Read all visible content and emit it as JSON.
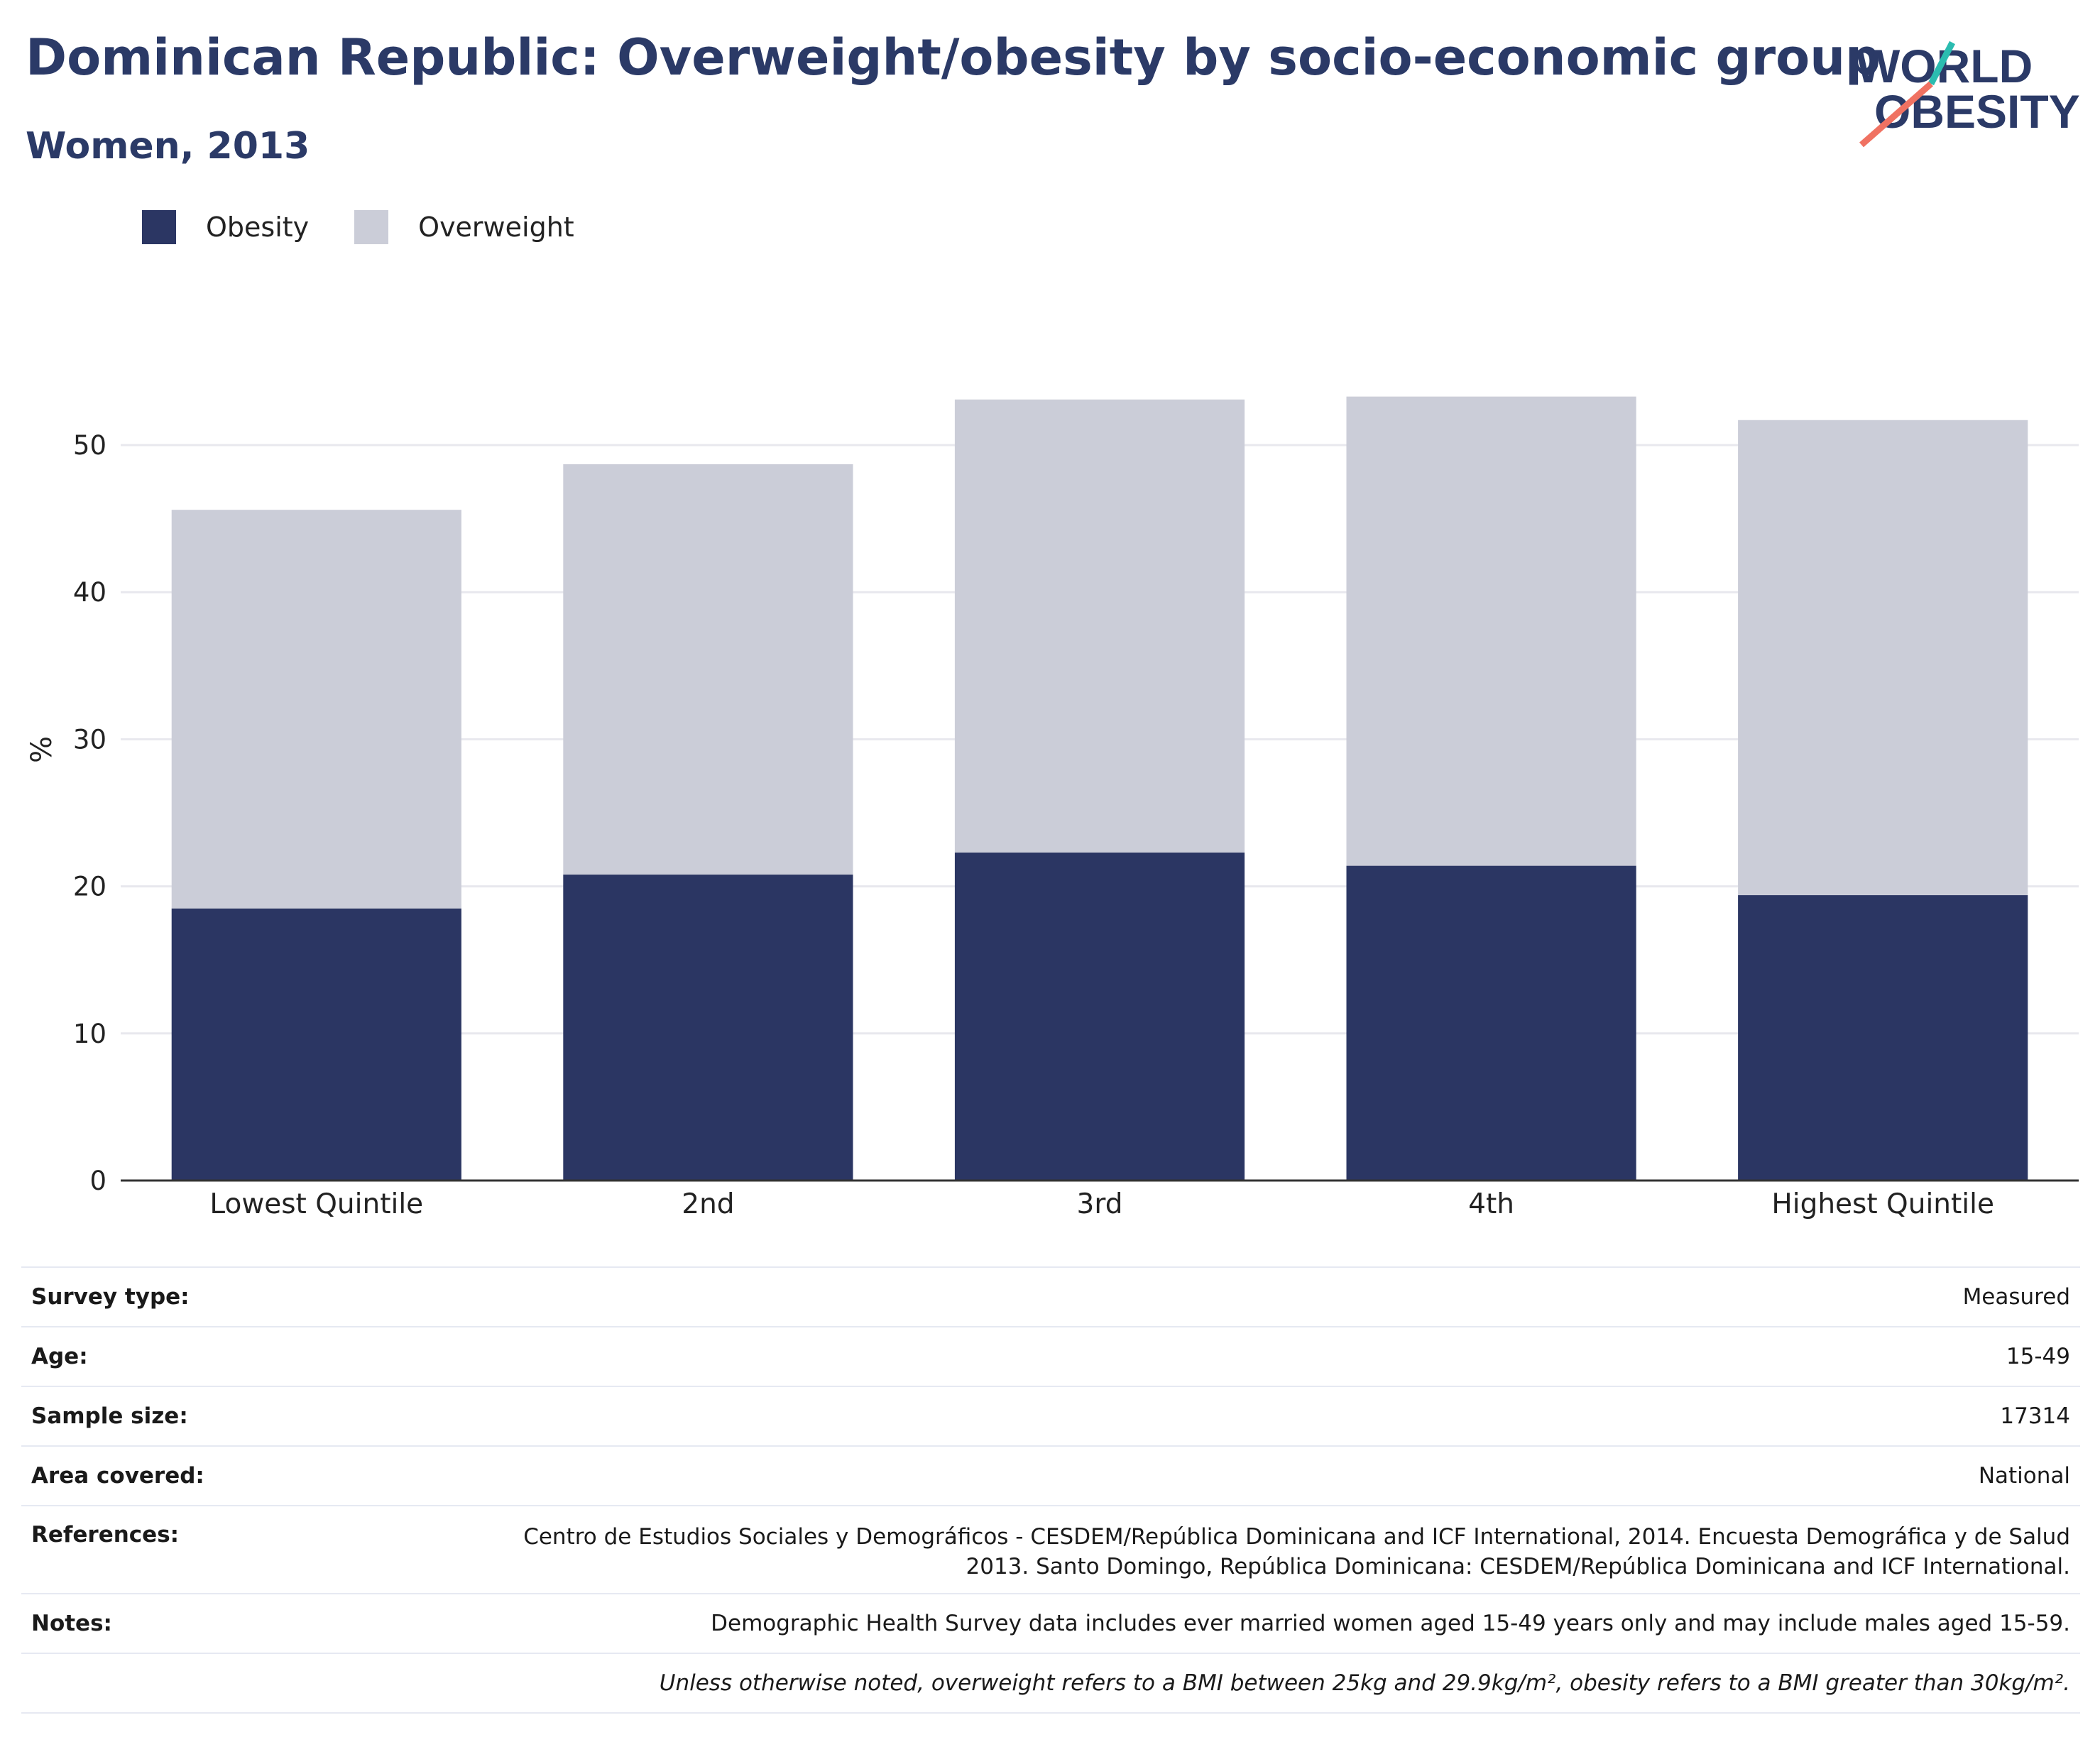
{
  "header": {
    "title": "Dominican Republic: Overweight/obesity by socio-economic group",
    "subtitle": "Women, 2013"
  },
  "logo": {
    "line1": "WORLD",
    "line2": "OBESITY"
  },
  "colors": {
    "obesity": "#2b3663",
    "overweight": "#cbcdd8",
    "title": "#2b3a67",
    "accent_teal": "#2bbcb0",
    "accent_coral": "#f07262"
  },
  "chart_data": {
    "type": "bar",
    "stacked": true,
    "categories": [
      "Lowest Quintile",
      "2nd",
      "3rd",
      "4th",
      "Highest Quintile"
    ],
    "series": [
      {
        "name": "Obesity",
        "values": [
          18.5,
          20.8,
          22.3,
          21.4,
          19.4
        ]
      },
      {
        "name": "Overweight",
        "values": [
          27.1,
          27.9,
          30.8,
          31.9,
          32.3
        ]
      }
    ],
    "ylabel": "%",
    "ylim": [
      0,
      55
    ],
    "yticks": [
      0,
      10,
      20,
      30,
      40,
      50
    ],
    "grid": true,
    "legend_position": "top-left"
  },
  "info": [
    {
      "key": "Survey type:",
      "value": "Measured"
    },
    {
      "key": "Age:",
      "value": "15-49"
    },
    {
      "key": "Sample size:",
      "value": "17314"
    },
    {
      "key": "Area covered:",
      "value": "National"
    },
    {
      "key": "References:",
      "value": "Centro de Estudios Sociales y Demográficos - CESDEM/República Dominicana and ICF International, 2014. Encuesta Demográfica y de Salud 2013. Santo Domingo, República Dominicana: CESDEM/República Dominicana and ICF International."
    },
    {
      "key": "Notes:",
      "value": "Demographic Health Survey data includes ever married women aged 15-49 years only and may include males aged 15-59."
    }
  ],
  "footnote": "Unless otherwise noted, overweight refers to a BMI between 25kg and 29.9kg/m², obesity refers to a BMI greater than 30kg/m²."
}
